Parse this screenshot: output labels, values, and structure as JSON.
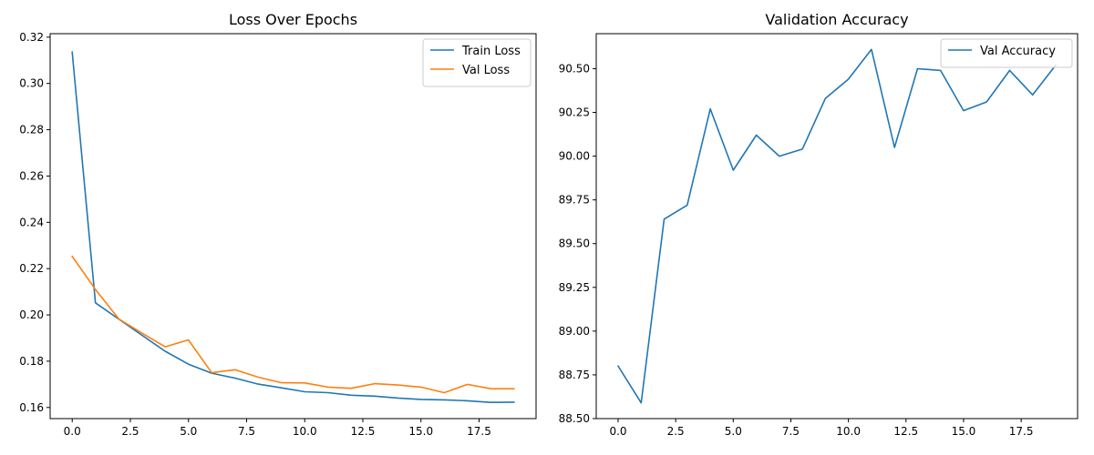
{
  "chart_data": [
    {
      "type": "line",
      "title": "Loss Over Epochs",
      "xlabel": "",
      "ylabel": "",
      "xlim": [
        -0.95,
        19.95
      ],
      "ylim": [
        0.1552,
        0.3215
      ],
      "xticks": [
        0.0,
        2.5,
        5.0,
        7.5,
        10.0,
        12.5,
        15.0,
        17.5
      ],
      "xtick_labels": [
        "0.0",
        "2.5",
        "5.0",
        "7.5",
        "10.0",
        "12.5",
        "15.0",
        "17.5"
      ],
      "yticks": [
        0.16,
        0.18,
        0.2,
        0.22,
        0.24,
        0.26,
        0.28,
        0.3,
        0.32
      ],
      "ytick_labels": [
        "0.16",
        "0.18",
        "0.20",
        "0.22",
        "0.24",
        "0.26",
        "0.28",
        "0.30",
        "0.32"
      ],
      "grid": false,
      "legend_position": "top-right",
      "x": [
        0,
        1,
        2,
        3,
        4,
        5,
        6,
        7,
        8,
        9,
        10,
        11,
        12,
        13,
        14,
        15,
        16,
        17,
        18,
        19
      ],
      "series": [
        {
          "name": "Train Loss",
          "color": "#1f77b4",
          "values": [
            0.3135,
            0.2052,
            0.1982,
            0.1912,
            0.1843,
            0.1787,
            0.1748,
            0.1727,
            0.1701,
            0.1685,
            0.1668,
            0.1664,
            0.1653,
            0.1649,
            0.1641,
            0.1635,
            0.1633,
            0.1629,
            0.1622,
            0.1623
          ]
        },
        {
          "name": "Val Loss",
          "color": "#ff7f0e",
          "values": [
            0.2253,
            0.211,
            0.1983,
            0.1921,
            0.1862,
            0.1892,
            0.175,
            0.1763,
            0.1731,
            0.1707,
            0.1706,
            0.1688,
            0.1683,
            0.1703,
            0.1697,
            0.1688,
            0.1664,
            0.17,
            0.1681,
            0.1681
          ]
        }
      ]
    },
    {
      "type": "line",
      "title": "Validation Accuracy",
      "xlabel": "",
      "ylabel": "",
      "xlim": [
        -0.95,
        19.95
      ],
      "ylim": [
        88.5,
        90.7
      ],
      "xticks": [
        0.0,
        2.5,
        5.0,
        7.5,
        10.0,
        12.5,
        15.0,
        17.5
      ],
      "xtick_labels": [
        "0.0",
        "2.5",
        "5.0",
        "7.5",
        "10.0",
        "12.5",
        "15.0",
        "17.5"
      ],
      "yticks": [
        88.5,
        88.75,
        89.0,
        89.25,
        89.5,
        89.75,
        90.0,
        90.25,
        90.5
      ],
      "ytick_labels": [
        "88.50",
        "88.75",
        "89.00",
        "89.25",
        "89.50",
        "89.75",
        "90.00",
        "90.25",
        "90.50"
      ],
      "grid": false,
      "legend_position": "top-right",
      "x": [
        0,
        1,
        2,
        3,
        4,
        5,
        6,
        7,
        8,
        9,
        10,
        11,
        12,
        13,
        14,
        15,
        16,
        17,
        18,
        19
      ],
      "series": [
        {
          "name": "Val Accuracy",
          "color": "#1f77b4",
          "values": [
            88.8,
            88.59,
            89.64,
            89.72,
            90.27,
            89.92,
            90.12,
            90.0,
            90.04,
            90.33,
            90.44,
            90.61,
            90.05,
            90.5,
            90.49,
            90.26,
            90.31,
            90.49,
            90.35,
            90.52
          ]
        }
      ]
    }
  ]
}
